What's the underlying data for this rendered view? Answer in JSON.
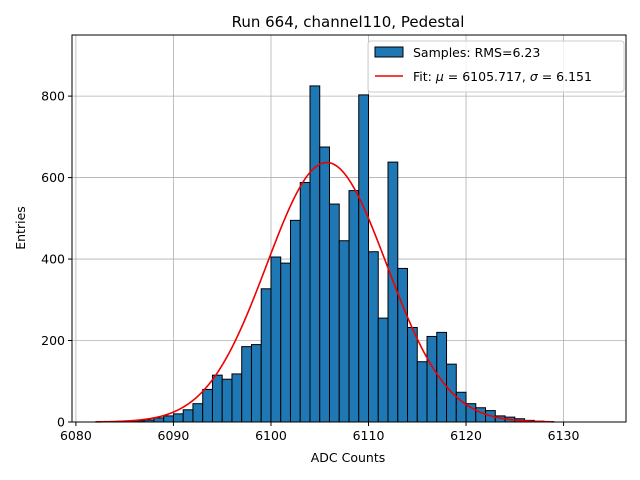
{
  "chart_data": {
    "type": "bar",
    "title": "Run 664, channel110, Pedestal",
    "xlabel": "ADC Counts",
    "ylabel": "Entries",
    "xlim": [
      6079.6,
      6136.4
    ],
    "ylim": [
      0,
      950
    ],
    "xticks": [
      6080,
      6090,
      6100,
      6110,
      6120,
      6130
    ],
    "yticks": [
      0,
      200,
      400,
      600,
      800
    ],
    "grid": true,
    "legend_position": "top-right",
    "histogram": {
      "name": "Samples: RMS=6.23",
      "color": "#1f77b4",
      "bin_width": 1,
      "bin_starts": [
        6084,
        6085,
        6086,
        6087,
        6088,
        6089,
        6090,
        6091,
        6092,
        6093,
        6094,
        6095,
        6096,
        6097,
        6098,
        6099,
        6100,
        6101,
        6102,
        6103,
        6104,
        6105,
        6106,
        6107,
        6108,
        6109,
        6110,
        6111,
        6112,
        6113,
        6114,
        6115,
        6116,
        6117,
        6118,
        6119,
        6120,
        6121,
        6122,
        6123,
        6124,
        6125,
        6126,
        6127,
        6128
      ],
      "counts": [
        1,
        2,
        3,
        5,
        10,
        15,
        20,
        30,
        45,
        80,
        115,
        105,
        118,
        185,
        190,
        327,
        405,
        390,
        495,
        588,
        825,
        675,
        535,
        445,
        568,
        803,
        418,
        255,
        638,
        377,
        232,
        148,
        210,
        220,
        142,
        73,
        45,
        35,
        28,
        15,
        12,
        8,
        4,
        2,
        1
      ]
    },
    "fit": {
      "name": "Fit: μ = 6105.717, σ = 6.151",
      "label_prefix": "Fit: ",
      "mu_symbol": "μ",
      "mu_value": " = 6105.717, ",
      "sigma_symbol": "σ",
      "sigma_value": " = 6.151",
      "color": "#ee0000",
      "mu": 6105.717,
      "sigma": 6.151,
      "amplitude": 637,
      "x_range": [
        6082,
        6129
      ]
    }
  }
}
